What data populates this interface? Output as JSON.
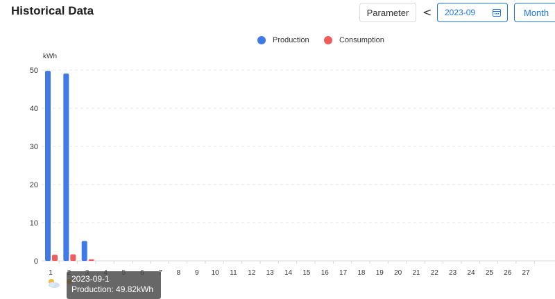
{
  "header": {
    "title": "Historical Data",
    "parameter_label": "Parameter",
    "prev_arrow": "<",
    "date_value": "2023-09",
    "period_label": "Month"
  },
  "colors": {
    "production": "#3f7ae6",
    "consumption": "#f05b5b",
    "accent": "#1a73e8"
  },
  "chart_data": {
    "type": "bar",
    "title": "",
    "ylabel": "kWh",
    "xlabel": "",
    "ylim": [
      0,
      50
    ],
    "yticks": [
      0,
      10,
      20,
      30,
      40,
      50
    ],
    "grid": true,
    "legend_position": "top-center",
    "categories": [
      "1",
      "2",
      "3",
      "4",
      "5",
      "6",
      "7",
      "8",
      "9",
      "10",
      "11",
      "12",
      "13",
      "14",
      "15",
      "16",
      "17",
      "18",
      "19",
      "20",
      "21",
      "22",
      "23",
      "24",
      "25",
      "26",
      "27"
    ],
    "series": [
      {
        "name": "Production",
        "color": "#3f7ae6",
        "values": [
          49.8,
          49.1,
          5.2,
          0,
          0,
          0,
          0,
          0,
          0,
          0,
          0,
          0,
          0,
          0,
          0,
          0,
          0,
          0,
          0,
          0,
          0,
          0,
          0,
          0,
          0,
          0,
          0
        ]
      },
      {
        "name": "Consumption",
        "color": "#f05b5b",
        "values": [
          1.6,
          1.7,
          0.4,
          0,
          0,
          0,
          0,
          0,
          0,
          0,
          0,
          0,
          0,
          0,
          0,
          0,
          0,
          0,
          0,
          0,
          0,
          0,
          0,
          0,
          0,
          0,
          0
        ]
      }
    ]
  },
  "tooltip": {
    "date": "2023-09-1",
    "production_line": "Production: 49.82kWh"
  },
  "weather_icons": [
    "partly-cloudy-icon",
    "sun-icon"
  ]
}
